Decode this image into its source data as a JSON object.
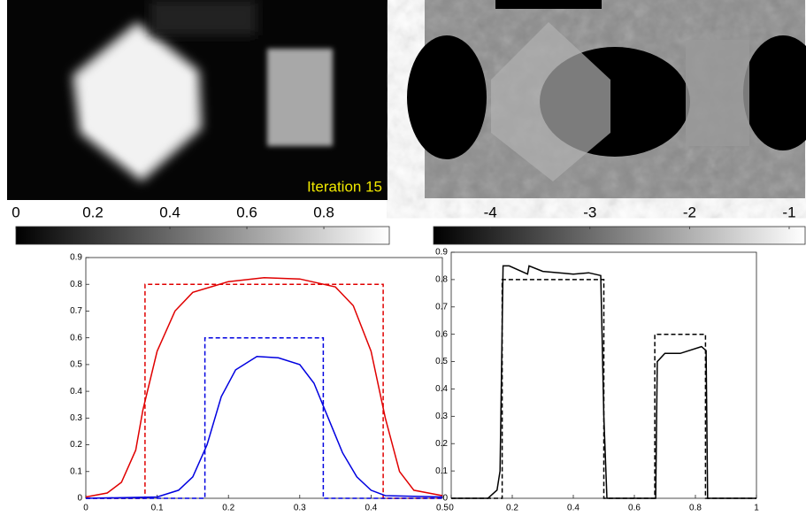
{
  "chart_data": [
    {
      "type": "colorbar",
      "annotation": "Iteration 15",
      "lim": [
        0,
        0.97
      ],
      "ticks": [
        0,
        0.2,
        0.4,
        0.6,
        0.8
      ]
    },
    {
      "type": "colorbar",
      "lim": [
        -4.57,
        -0.84
      ],
      "ticks": [
        -4,
        -3,
        -2,
        -1
      ]
    },
    {
      "type": "line",
      "xlim": [
        0,
        0.5
      ],
      "xticks": [
        0,
        0.1,
        0.2,
        0.3,
        0.4,
        0.5
      ],
      "ylim": [
        0,
        0.9
      ],
      "yticks": [
        0,
        0.1,
        0.2,
        0.3,
        0.4,
        0.5,
        0.6,
        0.7,
        0.8,
        0.9
      ],
      "series": [
        {
          "color": "#e00000",
          "dash": false,
          "x": [
            0,
            0.03,
            0.05,
            0.07,
            0.08,
            0.1,
            0.125,
            0.15,
            0.2,
            0.25,
            0.3,
            0.35,
            0.375,
            0.4,
            0.42,
            0.44,
            0.46,
            0.5
          ],
          "values": [
            0.005,
            0.02,
            0.06,
            0.18,
            0.33,
            0.55,
            0.7,
            0.77,
            0.81,
            0.825,
            0.82,
            0.79,
            0.72,
            0.55,
            0.3,
            0.1,
            0.03,
            0.01
          ]
        },
        {
          "color": "#e00000",
          "dash": true,
          "x": [
            0,
            0.083,
            0.083,
            0.417,
            0.417,
            0.5
          ],
          "values": [
            0,
            0,
            0.8,
            0.8,
            0,
            0
          ]
        },
        {
          "color": "#0000e0",
          "dash": false,
          "x": [
            0,
            0.1,
            0.13,
            0.15,
            0.17,
            0.19,
            0.21,
            0.24,
            0.27,
            0.3,
            0.32,
            0.34,
            0.36,
            0.38,
            0.4,
            0.42,
            0.5
          ],
          "values": [
            0,
            0.005,
            0.03,
            0.08,
            0.2,
            0.38,
            0.48,
            0.53,
            0.525,
            0.5,
            0.43,
            0.3,
            0.17,
            0.08,
            0.03,
            0.01,
            0.005
          ]
        },
        {
          "color": "#0000e0",
          "dash": true,
          "x": [
            0,
            0.167,
            0.167,
            0.333,
            0.333,
            0.5
          ],
          "values": [
            0,
            0,
            0.6,
            0.6,
            0,
            0
          ]
        }
      ]
    },
    {
      "type": "line",
      "xlim": [
        0,
        1
      ],
      "xticks": [
        0,
        0.2,
        0.4,
        0.6,
        0.8,
        1
      ],
      "ylim": [
        0,
        0.9
      ],
      "yticks": [
        0,
        0.1,
        0.2,
        0.3,
        0.4,
        0.5,
        0.6,
        0.7,
        0.8,
        0.9
      ],
      "series": [
        {
          "color": "#000000",
          "dash": false,
          "x": [
            0,
            0.12,
            0.15,
            0.16,
            0.17,
            0.19,
            0.25,
            0.255,
            0.3,
            0.4,
            0.45,
            0.49,
            0.5,
            0.51,
            0.67,
            0.675,
            0.7,
            0.75,
            0.82,
            0.835,
            0.84,
            1
          ],
          "values": [
            0,
            0,
            0.03,
            0.1,
            0.85,
            0.85,
            0.82,
            0.85,
            0.83,
            0.82,
            0.825,
            0.815,
            0.3,
            0,
            0,
            0.5,
            0.53,
            0.53,
            0.555,
            0.54,
            0,
            0
          ]
        },
        {
          "color": "#000000",
          "dash": true,
          "x": [
            0,
            0.167,
            0.167,
            0.5,
            0.5,
            0.667,
            0.667,
            0.833,
            0.833,
            1
          ],
          "values": [
            0,
            0,
            0.8,
            0.8,
            0,
            0,
            0.6,
            0.6,
            0,
            0
          ]
        }
      ]
    }
  ]
}
